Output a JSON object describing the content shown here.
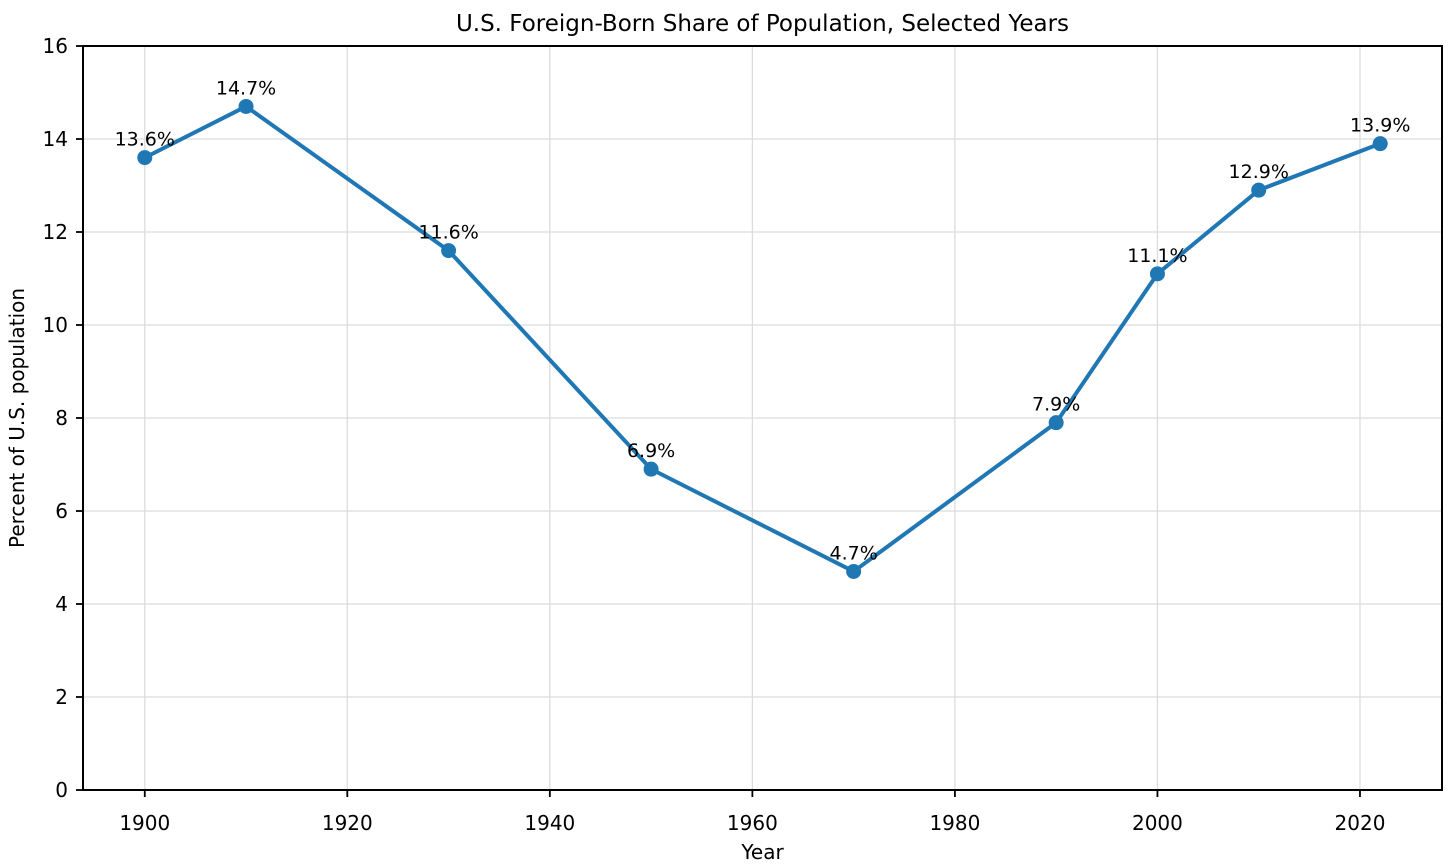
{
  "chart_data": {
    "type": "line",
    "title": "U.S. Foreign-Born Share of Population, Selected Years",
    "xlabel": "Year",
    "ylabel": "Percent of U.S. population",
    "x": [
      1900,
      1910,
      1930,
      1950,
      1970,
      1990,
      2000,
      2010,
      2022
    ],
    "values": [
      13.6,
      14.7,
      11.6,
      6.9,
      4.7,
      7.9,
      11.1,
      12.9,
      13.9
    ],
    "point_labels": [
      "13.6%",
      "14.7%",
      "11.6%",
      "6.9%",
      "4.7%",
      "7.9%",
      "11.1%",
      "12.9%",
      "13.9%"
    ],
    "xlim": [
      1893.9,
      2028.1
    ],
    "ylim": [
      0,
      16
    ],
    "xticks": [
      1900,
      1920,
      1940,
      1960,
      1980,
      2000,
      2020
    ],
    "yticks": [
      0,
      2,
      4,
      6,
      8,
      10,
      12,
      14,
      16
    ],
    "grid": true,
    "legend": "none",
    "line_color": "#1f77b4",
    "marker": "circle",
    "grid_color": "#dcdcdc",
    "spine_color": "#000000",
    "text_color": "#000000",
    "background": "#ffffff"
  }
}
